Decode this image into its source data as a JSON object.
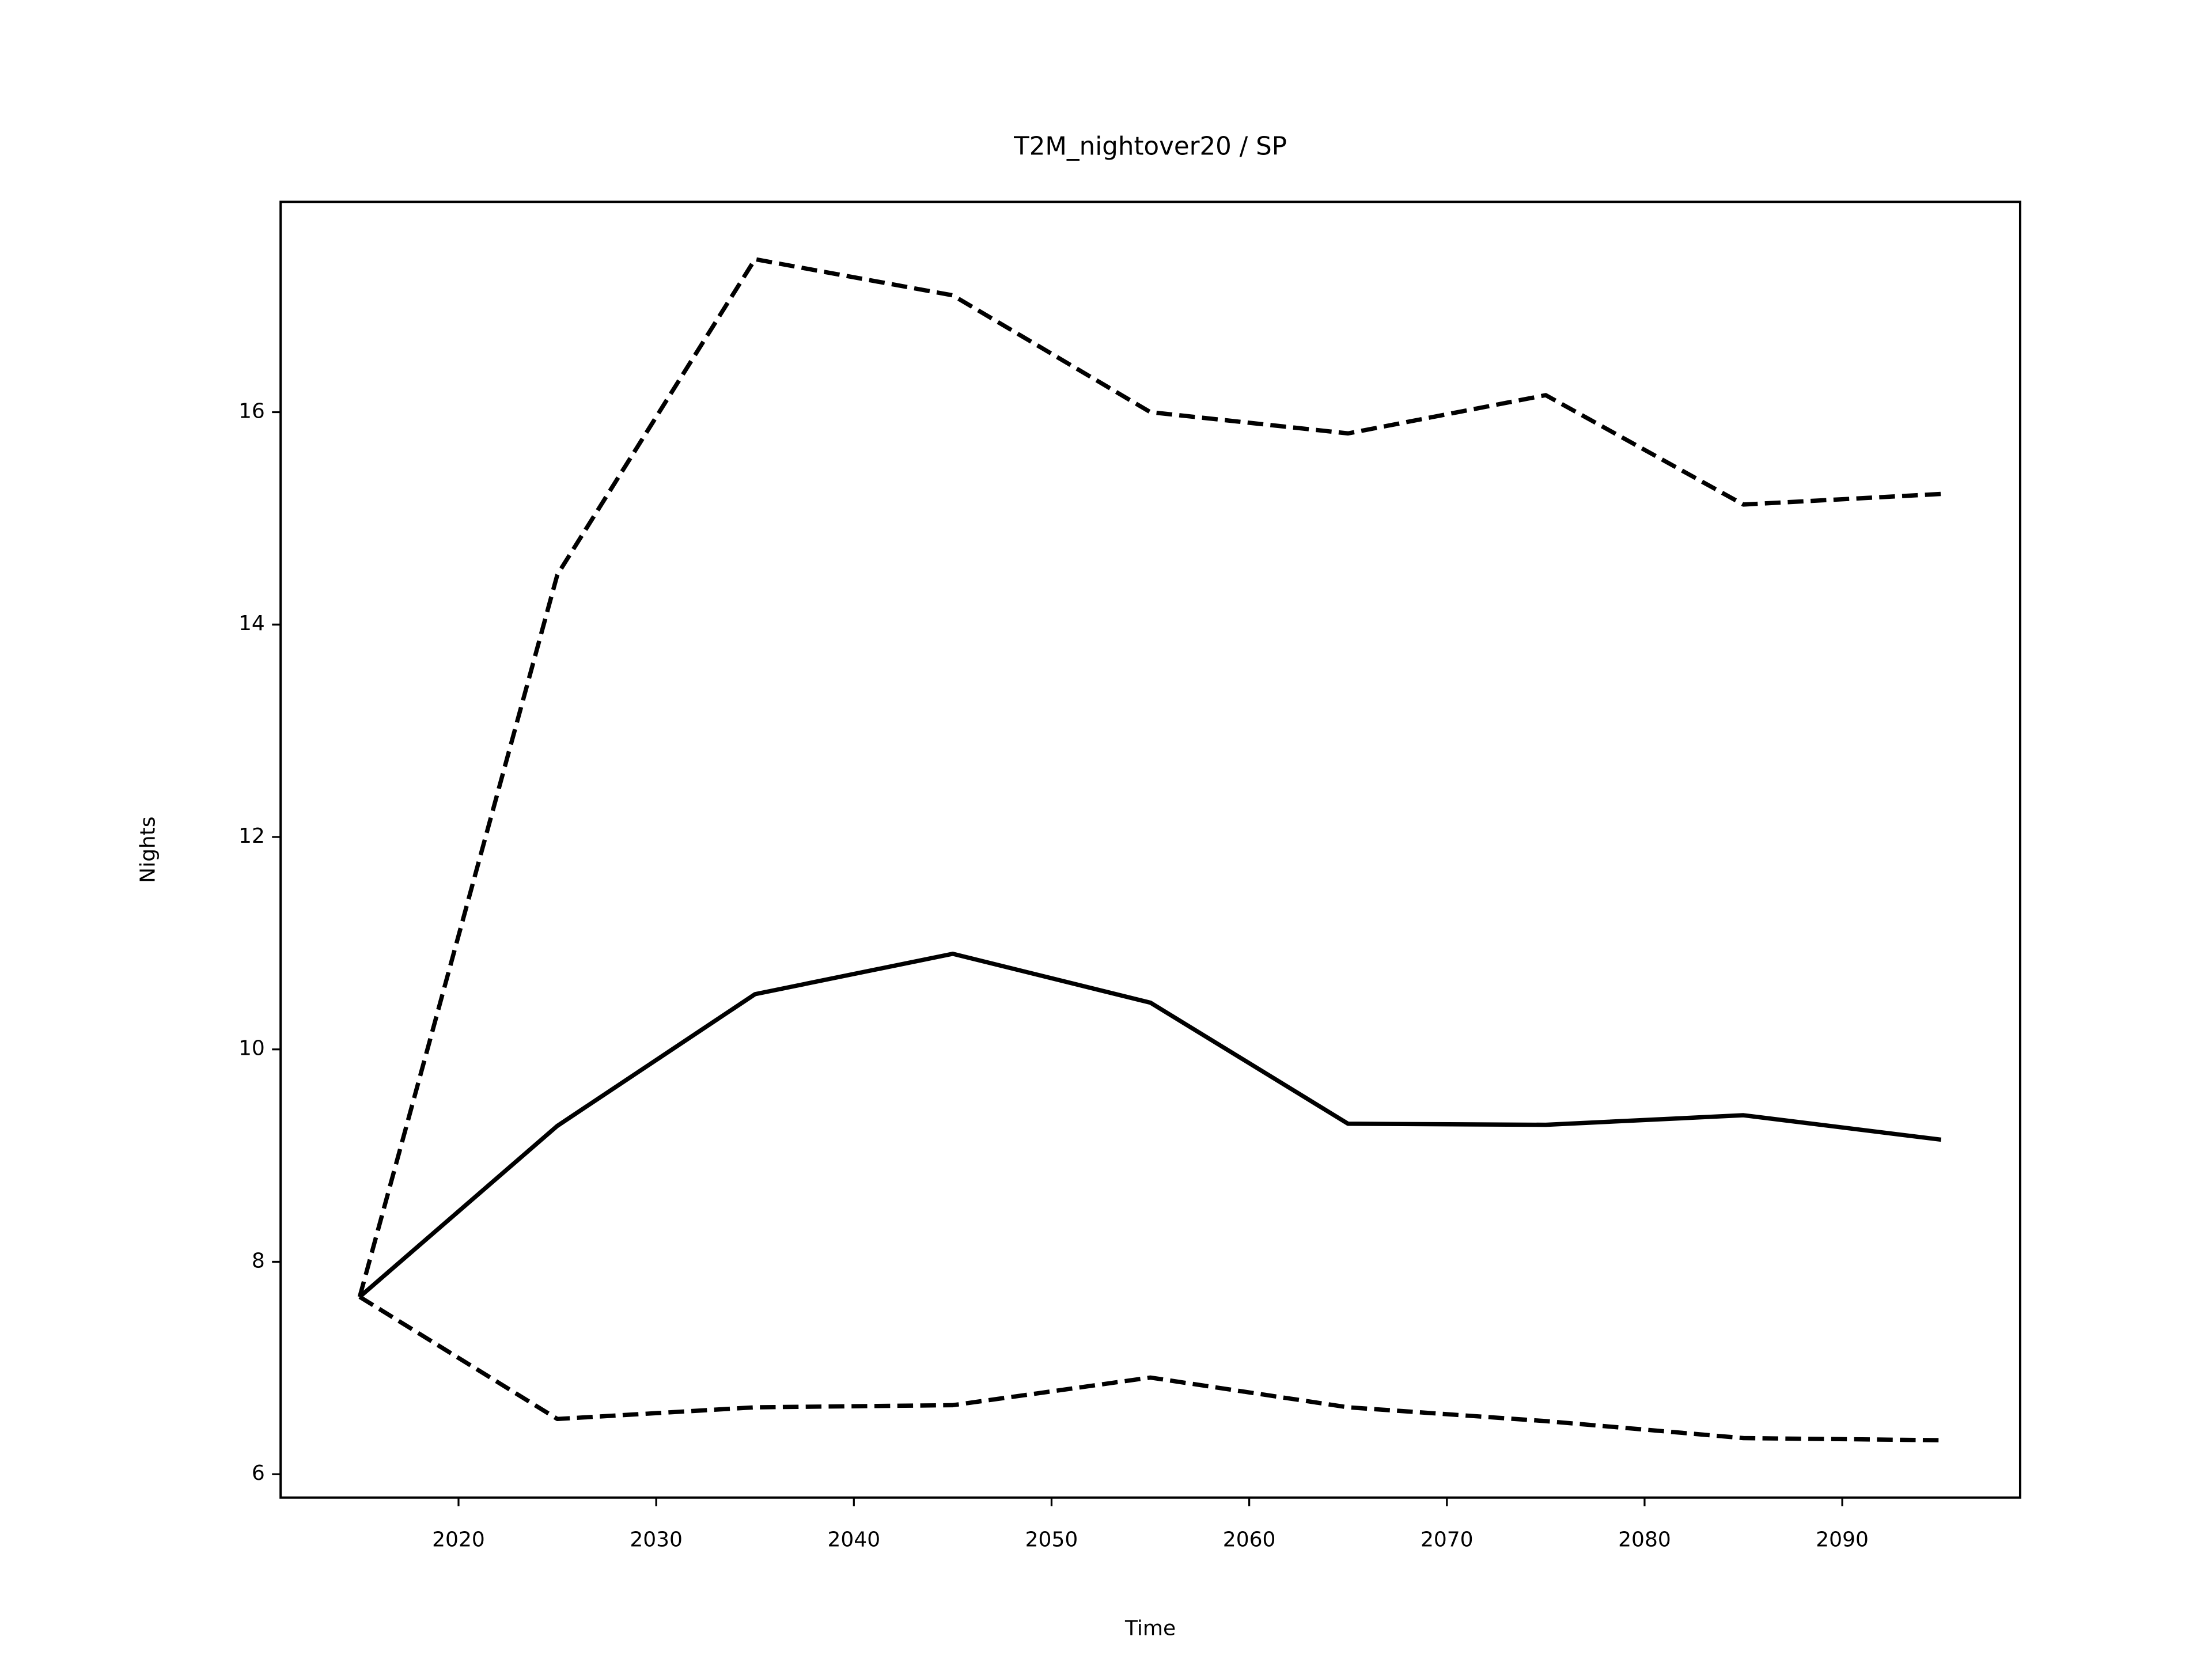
{
  "chart_data": {
    "type": "line",
    "title": "T2M_nightover20 / SP",
    "x_label": "Time",
    "y_label": "Nights",
    "x": [
      2015,
      2025,
      2035,
      2045,
      2055,
      2065,
      2075,
      2085,
      2095
    ],
    "series": [
      {
        "color": "#000000",
        "dash": "solid",
        "values": [
          7.67,
          9.28,
          10.52,
          10.9,
          10.44,
          9.3,
          9.29,
          9.38,
          9.15
        ]
      },
      {
        "color": "#000000",
        "dash": "dashed",
        "values": [
          7.67,
          14.47,
          17.44,
          17.1,
          16.0,
          15.8,
          16.16,
          15.13,
          15.23
        ]
      },
      {
        "color": "#000000",
        "dash": "dashed",
        "values": [
          7.67,
          6.52,
          6.63,
          6.65,
          6.91,
          6.63,
          6.5,
          6.34,
          6.32
        ]
      }
    ],
    "xlim": [
      2011,
      2099
    ],
    "ylim": [
      5.78,
      17.98
    ],
    "xticks": [
      2020,
      2030,
      2040,
      2050,
      2060,
      2070,
      2080,
      2090
    ],
    "yticks": [
      6,
      8,
      10,
      12,
      14,
      16
    ],
    "grid": false
  }
}
